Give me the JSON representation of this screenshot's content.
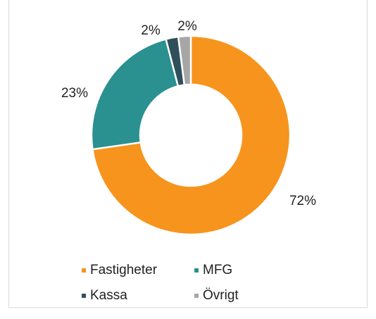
{
  "chart_data": {
    "type": "donut",
    "categories": [
      "Fastigheter",
      "MFG",
      "Kassa",
      "Övrigt"
    ],
    "values": [
      72,
      23,
      2,
      2
    ],
    "value_labels": [
      "72%",
      "23%",
      "2%",
      "2%"
    ],
    "colors": [
      "#f7941d",
      "#2a9090",
      "#2f4f5b",
      "#a6a6a6"
    ],
    "legend": "bottom"
  }
}
